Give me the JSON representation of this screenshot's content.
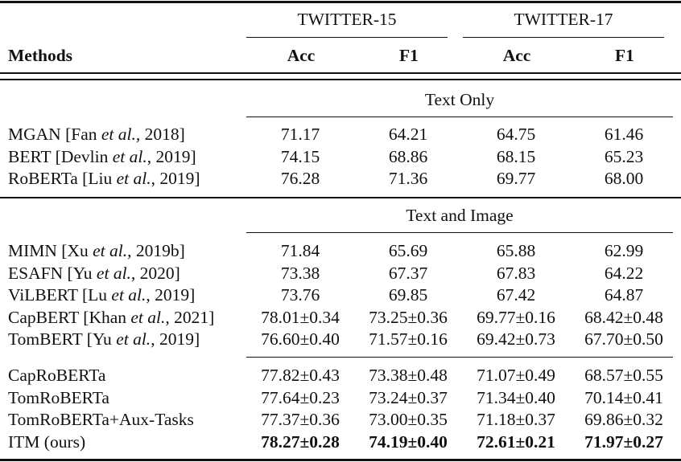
{
  "header": {
    "methods_label": "Methods",
    "groups": [
      {
        "label": "TWITTER-15",
        "cols": [
          "Acc",
          "F1"
        ]
      },
      {
        "label": "TWITTER-17",
        "cols": [
          "Acc",
          "F1"
        ]
      }
    ]
  },
  "sections": [
    {
      "title": "Text Only",
      "rows": [
        {
          "name": "MGAN",
          "cite_pre": "[Fan ",
          "cite_it": "et al.",
          "cite_post": ", 2018]",
          "values": [
            "71.17",
            "64.21",
            "64.75",
            "61.46"
          ],
          "bold": false
        },
        {
          "name": "BERT",
          "cite_pre": "[Devlin ",
          "cite_it": "et al.",
          "cite_post": ", 2019]",
          "values": [
            "74.15",
            "68.86",
            "68.15",
            "65.23"
          ],
          "bold": false
        },
        {
          "name": "RoBERTa",
          "cite_pre": "[Liu ",
          "cite_it": "et al.",
          "cite_post": ", 2019]",
          "values": [
            "76.28",
            "71.36",
            "69.77",
            "68.00"
          ],
          "bold": false
        }
      ]
    },
    {
      "title": "Text and Image",
      "rows": [
        {
          "name": "MIMN",
          "cite_pre": "[Xu ",
          "cite_it": "et al.",
          "cite_post": ", 2019b]",
          "values": [
            "71.84",
            "65.69",
            "65.88",
            "62.99"
          ],
          "bold": false
        },
        {
          "name": "ESAFN",
          "cite_pre": "[Yu ",
          "cite_it": "et al.",
          "cite_post": ", 2020]",
          "values": [
            "73.38",
            "67.37",
            "67.83",
            "64.22"
          ],
          "bold": false
        },
        {
          "name": "ViLBERT",
          "cite_pre": "[Lu ",
          "cite_it": "et al.",
          "cite_post": ", 2019]",
          "values": [
            "73.76",
            "69.85",
            "67.42",
            "64.87"
          ],
          "bold": false
        },
        {
          "name": "CapBERT",
          "cite_pre": "[Khan ",
          "cite_it": "et al.",
          "cite_post": ", 2021]",
          "values": [
            "78.01±0.34",
            "73.25±0.36",
            "69.77±0.16",
            "68.42±0.48"
          ],
          "bold": false
        },
        {
          "name": "TomBERT",
          "cite_pre": "[Yu ",
          "cite_it": "et al.",
          "cite_post": ", 2019]",
          "values": [
            "76.60±0.40",
            "71.57±0.16",
            "69.42±0.73",
            "67.70±0.50"
          ],
          "bold": false
        }
      ]
    },
    {
      "title": "",
      "rows": [
        {
          "name": "CapRoBERTa",
          "cite_pre": "",
          "cite_it": "",
          "cite_post": "",
          "values": [
            "77.82±0.43",
            "73.38±0.48",
            "71.07±0.49",
            "68.57±0.55"
          ],
          "bold": false
        },
        {
          "name": "TomRoBERTa",
          "cite_pre": "",
          "cite_it": "",
          "cite_post": "",
          "values": [
            "77.64±0.23",
            "73.24±0.37",
            "71.34±0.40",
            "70.14±0.41"
          ],
          "bold": false
        },
        {
          "name": "TomRoBERTa+Aux-Tasks",
          "cite_pre": "",
          "cite_it": "",
          "cite_post": "",
          "values": [
            "77.37±0.36",
            "73.00±0.35",
            "71.18±0.37",
            "69.86±0.32"
          ],
          "bold": false
        },
        {
          "name": "ITM (ours)",
          "cite_pre": "",
          "cite_it": "",
          "cite_post": "",
          "values": [
            "78.27±0.28",
            "74.19±0.40",
            "72.61±0.21",
            "71.97±0.27"
          ],
          "bold": true
        }
      ]
    }
  ]
}
